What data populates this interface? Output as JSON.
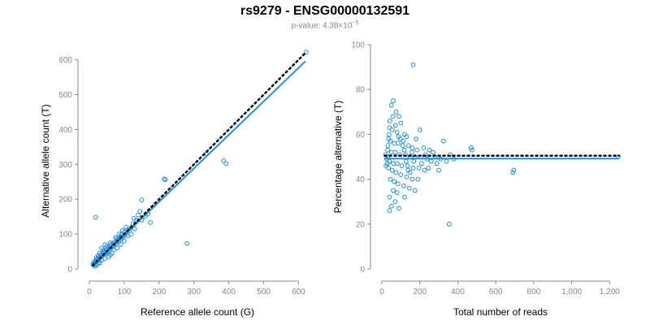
{
  "header": {
    "title": "rs9279 - ENSG00000132591",
    "pvalue_prefix": "p-value: 4.38×10",
    "pvalue_exp": "−5"
  },
  "colors": {
    "points": "#1e8fe0",
    "fit_line": "#1e8fe0",
    "expected_line": "#000000",
    "axis": "#888888"
  },
  "chart_data": [
    {
      "type": "scatter",
      "xlabel": "Reference allele count (G)",
      "ylabel": "Alternative allele count (T)",
      "xlim": [
        0,
        620
      ],
      "ylim": [
        0,
        620
      ],
      "xticks": [
        0,
        100,
        200,
        300,
        400,
        500,
        600
      ],
      "yticks": [
        0,
        100,
        200,
        300,
        400,
        500,
        600
      ],
      "xtick_labels": [
        "0",
        "100",
        "200",
        "300",
        "400",
        "500",
        "600"
      ],
      "ytick_labels": [
        "0",
        "100",
        "200",
        "300",
        "400",
        "500",
        "600"
      ],
      "fit_line": {
        "x": [
          10,
          620
        ],
        "y": [
          10,
          596
        ],
        "style": "solid"
      },
      "expected_line": {
        "x": [
          10,
          620
        ],
        "y": [
          10,
          620
        ],
        "style": "dotted"
      },
      "points": [
        [
          622,
          622
        ],
        [
          385,
          310
        ],
        [
          392,
          302
        ],
        [
          335,
          330
        ],
        [
          280,
          73
        ],
        [
          215,
          258
        ],
        [
          218,
          256
        ],
        [
          150,
          198
        ],
        [
          168,
          158
        ],
        [
          175,
          133
        ],
        [
          140,
          155
        ],
        [
          135,
          140
        ],
        [
          125,
          130
        ],
        [
          18,
          148
        ],
        [
          120,
          120
        ],
        [
          115,
          110
        ],
        [
          110,
          112
        ],
        [
          105,
          100
        ],
        [
          100,
          106
        ],
        [
          98,
          95
        ],
        [
          95,
          90
        ],
        [
          92,
          98
        ],
        [
          90,
          88
        ],
        [
          88,
          92
        ],
        [
          85,
          80
        ],
        [
          82,
          84
        ],
        [
          80,
          78
        ],
        [
          78,
          86
        ],
        [
          75,
          72
        ],
        [
          72,
          76
        ],
        [
          70,
          68
        ],
        [
          68,
          74
        ],
        [
          65,
          62
        ],
        [
          62,
          70
        ],
        [
          60,
          58
        ],
        [
          58,
          64
        ],
        [
          55,
          52
        ],
        [
          52,
          58
        ],
        [
          50,
          48
        ],
        [
          48,
          55
        ],
        [
          45,
          44
        ],
        [
          42,
          50
        ],
        [
          40,
          40
        ],
        [
          38,
          46
        ],
        [
          35,
          36
        ],
        [
          32,
          40
        ],
        [
          30,
          30
        ],
        [
          28,
          34
        ],
        [
          25,
          26
        ],
        [
          22,
          28
        ],
        [
          20,
          20
        ],
        [
          18,
          24
        ],
        [
          15,
          16
        ],
        [
          14,
          20
        ],
        [
          12,
          12
        ],
        [
          10,
          14
        ],
        [
          60,
          40
        ],
        [
          70,
          55
        ],
        [
          80,
          60
        ],
        [
          90,
          70
        ],
        [
          100,
          80
        ],
        [
          45,
          30
        ],
        [
          55,
          35
        ],
        [
          65,
          45
        ],
        [
          35,
          25
        ],
        [
          30,
          18
        ],
        [
          25,
          15
        ],
        [
          20,
          10
        ],
        [
          15,
          8
        ],
        [
          40,
          55
        ],
        [
          50,
          65
        ],
        [
          60,
          75
        ],
        [
          30,
          45
        ],
        [
          25,
          38
        ],
        [
          20,
          32
        ],
        [
          35,
          60
        ],
        [
          45,
          70
        ],
        [
          110,
          95
        ],
        [
          120,
          100
        ],
        [
          130,
          115
        ],
        [
          105,
          120
        ],
        [
          95,
          110
        ],
        [
          85,
          100
        ],
        [
          75,
          90
        ],
        [
          150,
          140
        ],
        [
          160,
          150
        ],
        [
          145,
          165
        ],
        [
          128,
          145
        ]
      ]
    },
    {
      "type": "scatter",
      "xlabel": "Total number of reads",
      "ylabel": "Percentage alternative (T)",
      "xlim": [
        0,
        1250
      ],
      "ylim": [
        0,
        100
      ],
      "xticks": [
        0,
        200,
        400,
        600,
        800,
        1000,
        1200
      ],
      "yticks": [
        0,
        20,
        40,
        60,
        80,
        100
      ],
      "xtick_labels": [
        "0",
        "200",
        "400",
        "600",
        "800",
        "1,000",
        "1,200"
      ],
      "ytick_labels": [
        "0",
        "20",
        "40",
        "60",
        "80",
        "100"
      ],
      "fit_line": {
        "x": [
          15,
          1250
        ],
        "y": [
          49.2,
          49.2
        ],
        "style": "solid"
      },
      "expected_line": {
        "x": [
          15,
          1250
        ],
        "y": [
          50.5,
          50.5
        ],
        "style": "dotted"
      },
      "points": [
        [
          165,
          91
        ],
        [
          355,
          20
        ],
        [
          1245,
          50
        ],
        [
          695,
          44
        ],
        [
          690,
          43
        ],
        [
          470,
          54
        ],
        [
          475,
          53
        ],
        [
          325,
          57
        ],
        [
          300,
          44
        ],
        [
          60,
          75
        ],
        [
          50,
          73
        ],
        [
          75,
          70
        ],
        [
          90,
          68
        ],
        [
          100,
          65
        ],
        [
          40,
          63
        ],
        [
          55,
          62
        ],
        [
          80,
          61
        ],
        [
          120,
          60
        ],
        [
          130,
          59
        ],
        [
          200,
          62
        ],
        [
          180,
          58
        ],
        [
          35,
          58
        ],
        [
          45,
          57
        ],
        [
          65,
          56
        ],
        [
          85,
          56
        ],
        [
          110,
          55
        ],
        [
          140,
          55
        ],
        [
          160,
          54
        ],
        [
          220,
          54
        ],
        [
          250,
          53
        ],
        [
          270,
          52
        ],
        [
          30,
          53
        ],
        [
          50,
          52
        ],
        [
          70,
          52
        ],
        [
          95,
          51
        ],
        [
          125,
          51
        ],
        [
          150,
          50
        ],
        [
          175,
          50
        ],
        [
          205,
          50
        ],
        [
          240,
          49
        ],
        [
          260,
          48
        ],
        [
          290,
          47
        ],
        [
          40,
          48
        ],
        [
          60,
          47
        ],
        [
          80,
          47
        ],
        [
          105,
          46
        ],
        [
          135,
          46
        ],
        [
          165,
          45
        ],
        [
          195,
          45
        ],
        [
          225,
          44
        ],
        [
          35,
          45
        ],
        [
          55,
          44
        ],
        [
          75,
          43
        ],
        [
          100,
          42
        ],
        [
          130,
          41
        ],
        [
          160,
          40
        ],
        [
          190,
          40
        ],
        [
          45,
          40
        ],
        [
          65,
          39
        ],
        [
          85,
          38
        ],
        [
          115,
          37
        ],
        [
          145,
          36
        ],
        [
          175,
          35
        ],
        [
          60,
          35
        ],
        [
          80,
          34
        ],
        [
          40,
          32
        ],
        [
          120,
          32
        ],
        [
          70,
          30
        ],
        [
          50,
          28
        ],
        [
          90,
          27
        ],
        [
          40,
          26
        ],
        [
          30,
          50
        ],
        [
          25,
          49
        ],
        [
          20,
          51
        ],
        [
          28,
          47
        ],
        [
          22,
          46
        ],
        [
          32,
          55
        ],
        [
          38,
          60
        ],
        [
          42,
          66
        ],
        [
          58,
          68
        ],
        [
          72,
          64
        ],
        [
          88,
          59
        ],
        [
          98,
          58
        ],
        [
          112,
          57
        ],
        [
          118,
          53
        ],
        [
          128,
          48
        ],
        [
          138,
          44
        ],
        [
          148,
          43
        ],
        [
          158,
          52
        ],
        [
          168,
          48
        ],
        [
          185,
          53
        ],
        [
          210,
          47
        ],
        [
          230,
          51
        ],
        [
          245,
          45
        ],
        [
          280,
          50
        ],
        [
          310,
          49
        ],
        [
          340,
          48
        ],
        [
          360,
          51
        ],
        [
          380,
          49
        ]
      ]
    }
  ]
}
